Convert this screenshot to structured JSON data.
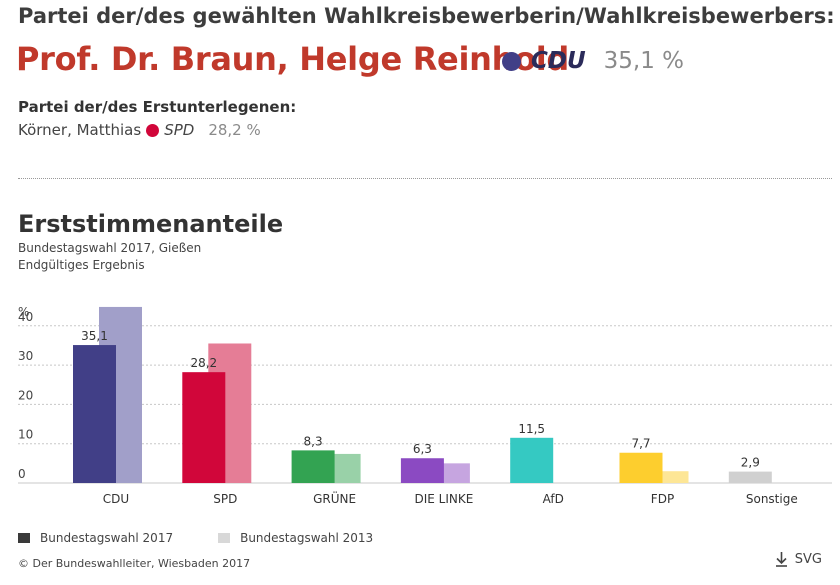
{
  "header": {
    "winner_label": "Partei der/des gewählten Wahlkreisbewerberin/Wahlkreisbewerbers:",
    "winner_name": "Prof. Dr. Braun, Helge Reinhold",
    "winner_party": "CDU",
    "winner_pct": "35,1 %",
    "winner_color": "#413f87",
    "runnerup_label": "Partei der/des Erstunterlegenen:",
    "runnerup_name": "Körner, Matthias",
    "runnerup_party": "SPD",
    "runnerup_pct": "28,2 %",
    "runnerup_color": "#d1063a"
  },
  "chart_data": {
    "type": "bar",
    "title": "Erststimmenanteile",
    "subtitle": "Bundestagswahl 2017, Gießen",
    "subtitle2": "Endgültiges Ergebnis",
    "ylabel": "%",
    "ylim": [
      0,
      45
    ],
    "yticks": [
      "0",
      "10",
      "20",
      "30",
      "40"
    ],
    "grid": true,
    "categories": [
      "CDU",
      "SPD",
      "GRÜNE",
      "DIE LINKE",
      "AfD",
      "FDP",
      "Sonstige"
    ],
    "series": [
      {
        "name": "Bundestagswahl 2017",
        "values": [
          35.1,
          28.2,
          8.3,
          6.3,
          11.5,
          7.7,
          2.9
        ],
        "labels": [
          "35,1",
          "28,2",
          "8,3",
          "6,3",
          "11,5",
          "7,7",
          "2,9"
        ],
        "colors": [
          "#413f87",
          "#d1063a",
          "#33a352",
          "#8b4ac2",
          "#35c9c2",
          "#fdce2e",
          "#d0d0d0"
        ]
      },
      {
        "name": "Bundestagswahl 2013",
        "values": [
          44.8,
          35.5,
          7.4,
          5.0,
          null,
          3.0,
          null
        ],
        "colors": [
          "#a19fc9",
          "#e57d96",
          "#99d1a8",
          "#c6a5e0",
          "#9ae4e0",
          "#fde696",
          "#e7e7e7"
        ]
      }
    ]
  },
  "legend": {
    "items": [
      {
        "label": "Bundestagswahl 2017",
        "color": "#3a3a3a"
      },
      {
        "label": "Bundestagswahl 2013",
        "color": "#d8d8d8"
      }
    ]
  },
  "footer": {
    "source": "© Der Bundeswahlleiter, Wiesbaden 2017",
    "svg_label": "SVG",
    "download_icon": "download-arrow-icon"
  }
}
